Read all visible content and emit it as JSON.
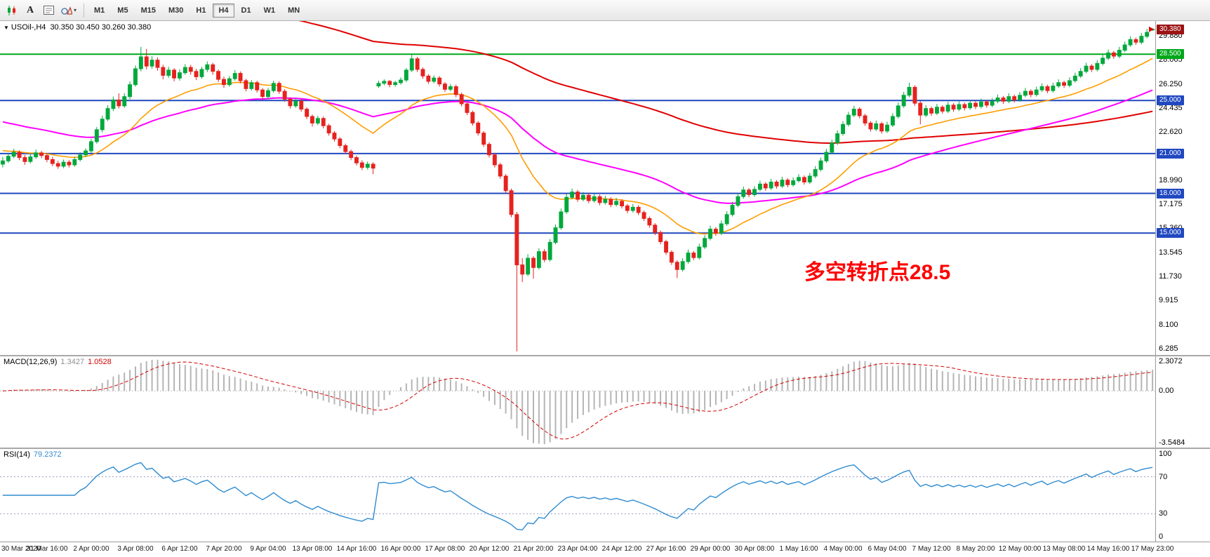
{
  "toolbar": {
    "timeframes": [
      "M1",
      "M5",
      "M15",
      "M30",
      "H1",
      "H4",
      "D1",
      "W1",
      "MN"
    ],
    "active_timeframe": "H4",
    "tools": {
      "text_label": "A",
      "dropdown_icon": "▾"
    }
  },
  "chart": {
    "collapse_icon": "▼",
    "title": "USOil-,H4",
    "ohlc": "30.350 30.450 30.260 30.380",
    "annotation": {
      "text": "多空转折点28.5",
      "color": "#ff0000",
      "at_index": 145,
      "at_price": 12.3
    },
    "price_range": {
      "min": 5.8,
      "max": 31.0
    },
    "price_ticks": [
      "29.880",
      "28.065",
      "26.250",
      "24.435",
      "22.620",
      "20.805",
      "18.990",
      "17.175",
      "15.360",
      "13.545",
      "11.730",
      "9.915",
      "8.100",
      "6.285"
    ],
    "lines": [
      {
        "label": "30.380",
        "price": 30.38,
        "color": "#9c1313",
        "kind": "last-price"
      },
      {
        "label": "28.500",
        "price": 28.5,
        "color": "#00a819",
        "kind": "hline"
      },
      {
        "label": "25.000",
        "price": 25.0,
        "color": "#2048c0",
        "kind": "hline"
      },
      {
        "label": "21.000",
        "price": 21.0,
        "color": "#2048c0",
        "kind": "hline"
      },
      {
        "label": "18.000",
        "price": 18.0,
        "color": "#2048c0",
        "kind": "hline"
      },
      {
        "label": "15.000",
        "price": 15.0,
        "color": "#2048c0",
        "kind": "hline"
      }
    ],
    "label_every": 8,
    "time_labels": [
      "30 Mar 2020",
      "31 Mar 16:00",
      "2 Apr 00:00",
      "3 Apr 08:00",
      "6 Apr 12:00",
      "7 Apr 20:00",
      "9 Apr 04:00",
      "13 Apr 08:00",
      "14 Apr 16:00",
      "16 Apr 00:00",
      "17 Apr 08:00",
      "20 Apr 12:00",
      "21 Apr 20:00",
      "23 Apr 04:00",
      "24 Apr 12:00",
      "27 Apr 16:00",
      "29 Apr 00:00",
      "30 Apr 08:00",
      "1 May 16:00",
      "4 May 00:00",
      "6 May 04:00",
      "7 May 12:00",
      "8 May 20:00",
      "12 May 00:00",
      "13 May 08:00",
      "14 May 16:00",
      "17 May 23:00"
    ]
  },
  "macd": {
    "title": "MACD(12,26,9)",
    "value_main": "1.3427",
    "value_signal": "1.0528",
    "fast": 12,
    "slow": 26,
    "signal": 9,
    "scale_top": "2.3072",
    "scale_zero": "0.00",
    "scale_bottom": "-3.5484"
  },
  "rsi": {
    "title": "RSI(14)",
    "value": "79.2372",
    "period": 14,
    "levels": [
      70,
      30
    ],
    "scale": [
      "100",
      "70",
      "30",
      "0"
    ]
  },
  "chart_data": {
    "type": "candlestick-ohlc",
    "symbol": "USOil-",
    "timeframe": "H4",
    "colors": {
      "up": "#00a83c",
      "down": "#e6221e",
      "macd_hist": "#b5b5b5",
      "macd_signal": "#d40000",
      "rsi_line": "#2e8bd0"
    },
    "overlays": [
      {
        "name": "ma-slow-red",
        "period": 144,
        "seed": 38.0,
        "color": "#e00000",
        "width": 2
      },
      {
        "name": "ma-mid-magenta",
        "period": 55,
        "seed": 23.5,
        "color": "#ff00ff",
        "width": 2
      },
      {
        "name": "ma-fast-orange",
        "period": 21,
        "seed": 21.3,
        "color": "#ff9d00",
        "width": 1.6
      }
    ],
    "candles": [
      [
        20.2,
        20.75,
        19.95,
        20.45
      ],
      [
        20.45,
        21.0,
        20.3,
        20.8
      ],
      [
        20.8,
        21.35,
        20.65,
        21.1
      ],
      [
        21.1,
        21.25,
        20.5,
        20.7
      ],
      [
        20.7,
        20.9,
        20.15,
        20.4
      ],
      [
        20.4,
        20.95,
        20.25,
        20.75
      ],
      [
        20.75,
        21.3,
        20.6,
        21.05
      ],
      [
        21.05,
        21.2,
        20.65,
        20.85
      ],
      [
        20.85,
        21.0,
        20.35,
        20.55
      ],
      [
        20.55,
        20.75,
        20.05,
        20.25
      ],
      [
        20.25,
        20.45,
        19.85,
        20.05
      ],
      [
        20.05,
        20.55,
        19.9,
        20.35
      ],
      [
        20.35,
        20.5,
        19.95,
        20.15
      ],
      [
        20.15,
        20.75,
        20.0,
        20.55
      ],
      [
        20.55,
        21.1,
        20.4,
        20.9
      ],
      [
        20.9,
        21.4,
        20.75,
        21.2
      ],
      [
        21.2,
        22.1,
        21.05,
        21.9
      ],
      [
        21.9,
        23.0,
        21.75,
        22.8
      ],
      [
        22.8,
        23.85,
        22.6,
        23.6
      ],
      [
        23.6,
        24.65,
        23.45,
        24.4
      ],
      [
        24.4,
        25.3,
        24.2,
        25.05
      ],
      [
        25.05,
        25.55,
        24.4,
        24.6
      ],
      [
        24.6,
        25.55,
        24.45,
        25.3
      ],
      [
        25.3,
        26.45,
        25.1,
        26.2
      ],
      [
        26.2,
        27.65,
        26.05,
        27.4
      ],
      [
        27.4,
        29.05,
        27.2,
        28.3
      ],
      [
        28.3,
        28.9,
        27.35,
        27.6
      ],
      [
        27.6,
        28.35,
        27.4,
        28.05
      ],
      [
        28.05,
        28.25,
        27.25,
        27.5
      ],
      [
        27.5,
        27.7,
        26.6,
        26.9
      ],
      [
        26.9,
        27.55,
        26.7,
        27.3
      ],
      [
        27.3,
        27.45,
        26.45,
        26.7
      ],
      [
        26.7,
        27.35,
        26.5,
        27.1
      ],
      [
        27.1,
        27.75,
        26.95,
        27.5
      ],
      [
        27.5,
        27.7,
        26.95,
        27.2
      ],
      [
        27.2,
        27.4,
        26.55,
        26.8
      ],
      [
        26.8,
        27.55,
        26.65,
        27.35
      ],
      [
        27.35,
        27.95,
        27.15,
        27.7
      ],
      [
        27.7,
        27.85,
        26.95,
        27.2
      ],
      [
        27.2,
        27.35,
        26.4,
        26.6
      ],
      [
        26.6,
        26.8,
        25.95,
        26.2
      ],
      [
        26.2,
        26.85,
        26.05,
        26.65
      ],
      [
        26.65,
        27.3,
        26.5,
        27.05
      ],
      [
        27.05,
        27.2,
        26.3,
        26.5
      ],
      [
        26.5,
        26.65,
        25.7,
        25.9
      ],
      [
        25.9,
        26.55,
        25.75,
        26.35
      ],
      [
        26.35,
        26.5,
        25.6,
        25.8
      ],
      [
        25.8,
        25.95,
        25.05,
        25.3
      ],
      [
        25.3,
        25.95,
        25.15,
        25.75
      ],
      [
        25.75,
        26.5,
        25.6,
        26.3
      ],
      [
        26.3,
        26.45,
        25.5,
        25.7
      ],
      [
        25.7,
        25.85,
        24.9,
        25.1
      ],
      [
        25.1,
        25.25,
        24.4,
        24.6
      ],
      [
        24.6,
        25.15,
        24.45,
        24.95
      ],
      [
        24.95,
        25.1,
        24.15,
        24.35
      ],
      [
        24.35,
        24.5,
        23.6,
        23.8
      ],
      [
        23.8,
        23.95,
        23.05,
        23.3
      ],
      [
        23.3,
        23.85,
        23.15,
        23.65
      ],
      [
        23.65,
        23.8,
        22.9,
        23.1
      ],
      [
        23.1,
        23.25,
        22.35,
        22.55
      ],
      [
        22.55,
        22.7,
        21.9,
        22.1
      ],
      [
        22.1,
        22.25,
        21.4,
        21.6
      ],
      [
        21.6,
        21.75,
        20.95,
        21.15
      ],
      [
        21.15,
        21.3,
        20.5,
        20.7
      ],
      [
        20.7,
        20.85,
        20.1,
        20.3
      ],
      [
        20.3,
        20.5,
        19.75,
        19.95
      ],
      [
        19.95,
        20.4,
        19.8,
        20.2
      ],
      [
        20.2,
        20.35,
        19.45,
        19.9
      ],
      [
        26.1,
        26.5,
        25.95,
        26.3
      ],
      [
        26.3,
        26.6,
        26.15,
        26.45
      ],
      [
        26.45,
        26.55,
        26.0,
        26.2
      ],
      [
        26.2,
        26.5,
        26.05,
        26.35
      ],
      [
        26.35,
        26.75,
        26.2,
        26.55
      ],
      [
        26.55,
        27.45,
        26.4,
        27.3
      ],
      [
        27.3,
        28.52,
        27.15,
        28.15
      ],
      [
        28.15,
        28.3,
        27.15,
        27.35
      ],
      [
        27.35,
        27.5,
        26.65,
        26.85
      ],
      [
        26.85,
        27.0,
        26.25,
        26.45
      ],
      [
        26.45,
        26.9,
        26.3,
        26.7
      ],
      [
        26.7,
        26.85,
        26.05,
        26.25
      ],
      [
        26.25,
        26.4,
        25.65,
        25.85
      ],
      [
        25.85,
        26.25,
        25.7,
        26.05
      ],
      [
        26.05,
        26.2,
        25.25,
        25.45
      ],
      [
        25.45,
        25.6,
        24.55,
        24.75
      ],
      [
        24.75,
        24.9,
        23.9,
        24.1
      ],
      [
        24.1,
        24.25,
        23.1,
        23.3
      ],
      [
        23.3,
        23.45,
        22.35,
        22.55
      ],
      [
        22.55,
        22.7,
        21.5,
        21.7
      ],
      [
        21.7,
        21.85,
        20.7,
        20.9
      ],
      [
        20.9,
        21.05,
        19.95,
        20.15
      ],
      [
        20.15,
        20.3,
        19.1,
        19.3
      ],
      [
        19.3,
        19.45,
        18.0,
        18.2
      ],
      [
        18.2,
        18.35,
        16.2,
        16.4
      ],
      [
        16.4,
        16.6,
        6.07,
        12.6
      ],
      [
        12.6,
        13.1,
        11.3,
        11.9
      ],
      [
        11.9,
        13.4,
        11.75,
        13.1
      ],
      [
        13.1,
        13.25,
        11.55,
        12.4
      ],
      [
        12.4,
        13.85,
        12.25,
        13.6
      ],
      [
        13.6,
        13.8,
        12.8,
        13.0
      ],
      [
        13.0,
        14.55,
        12.85,
        14.3
      ],
      [
        14.3,
        15.65,
        14.15,
        15.4
      ],
      [
        15.4,
        16.85,
        15.25,
        16.6
      ],
      [
        16.6,
        17.95,
        16.45,
        17.7
      ],
      [
        17.7,
        18.35,
        17.55,
        18.1
      ],
      [
        18.1,
        18.25,
        17.35,
        17.55
      ],
      [
        17.55,
        18.1,
        17.4,
        17.85
      ],
      [
        17.85,
        18.0,
        17.25,
        17.45
      ],
      [
        17.45,
        18.0,
        17.3,
        17.75
      ],
      [
        17.75,
        17.9,
        17.1,
        17.3
      ],
      [
        17.3,
        17.8,
        17.15,
        17.55
      ],
      [
        17.55,
        17.7,
        16.95,
        17.15
      ],
      [
        17.15,
        17.65,
        17.0,
        17.4
      ],
      [
        17.4,
        17.55,
        16.85,
        17.05
      ],
      [
        17.05,
        17.2,
        16.5,
        16.7
      ],
      [
        16.7,
        17.2,
        16.55,
        16.95
      ],
      [
        16.95,
        17.1,
        16.35,
        16.55
      ],
      [
        16.55,
        16.7,
        15.9,
        16.1
      ],
      [
        16.1,
        16.25,
        15.4,
        15.6
      ],
      [
        15.6,
        15.75,
        14.85,
        15.05
      ],
      [
        15.05,
        15.2,
        14.15,
        14.35
      ],
      [
        14.35,
        14.5,
        13.35,
        13.55
      ],
      [
        13.55,
        13.7,
        12.6,
        12.8
      ],
      [
        12.8,
        12.95,
        11.6,
        12.25
      ],
      [
        12.25,
        13.1,
        12.1,
        12.85
      ],
      [
        12.85,
        13.75,
        12.7,
        13.5
      ],
      [
        13.5,
        13.65,
        12.95,
        13.15
      ],
      [
        13.15,
        14.2,
        13.0,
        13.95
      ],
      [
        13.95,
        14.85,
        13.8,
        14.6
      ],
      [
        14.6,
        15.55,
        14.45,
        15.3
      ],
      [
        15.3,
        15.45,
        14.8,
        15.0
      ],
      [
        15.0,
        15.95,
        14.85,
        15.7
      ],
      [
        15.7,
        16.65,
        15.55,
        16.4
      ],
      [
        16.4,
        17.35,
        16.25,
        17.1
      ],
      [
        17.1,
        18.0,
        16.95,
        17.75
      ],
      [
        17.75,
        18.5,
        17.6,
        18.25
      ],
      [
        18.25,
        18.4,
        17.7,
        17.9
      ],
      [
        17.9,
        18.55,
        17.75,
        18.3
      ],
      [
        18.3,
        18.95,
        18.15,
        18.7
      ],
      [
        18.7,
        18.85,
        18.2,
        18.4
      ],
      [
        18.4,
        19.1,
        18.25,
        18.85
      ],
      [
        18.85,
        19.0,
        18.35,
        18.55
      ],
      [
        18.55,
        19.25,
        18.4,
        19.0
      ],
      [
        19.0,
        19.15,
        18.45,
        18.65
      ],
      [
        18.65,
        19.2,
        18.5,
        18.95
      ],
      [
        18.95,
        19.45,
        18.8,
        19.2
      ],
      [
        19.2,
        19.35,
        18.65,
        18.85
      ],
      [
        18.85,
        19.55,
        18.7,
        19.3
      ],
      [
        19.3,
        20.05,
        19.15,
        19.8
      ],
      [
        19.8,
        20.7,
        19.65,
        20.45
      ],
      [
        20.45,
        21.35,
        20.3,
        21.1
      ],
      [
        21.1,
        22.05,
        20.95,
        21.8
      ],
      [
        21.8,
        22.75,
        21.65,
        22.5
      ],
      [
        22.5,
        23.45,
        22.35,
        23.2
      ],
      [
        23.2,
        24.15,
        23.05,
        23.9
      ],
      [
        23.9,
        24.6,
        23.75,
        24.35
      ],
      [
        24.35,
        24.5,
        23.65,
        23.85
      ],
      [
        23.85,
        24.0,
        23.1,
        23.3
      ],
      [
        23.3,
        23.45,
        22.65,
        22.85
      ],
      [
        22.85,
        23.5,
        22.7,
        23.25
      ],
      [
        23.25,
        23.4,
        22.5,
        22.7
      ],
      [
        22.7,
        23.4,
        22.55,
        23.15
      ],
      [
        23.15,
        24.05,
        23.0,
        23.8
      ],
      [
        23.8,
        24.85,
        23.65,
        24.6
      ],
      [
        24.6,
        25.65,
        24.45,
        25.4
      ],
      [
        25.4,
        26.35,
        25.25,
        26.0
      ],
      [
        26.0,
        26.15,
        24.6,
        24.8
      ],
      [
        24.8,
        24.95,
        23.2,
        23.9
      ],
      [
        23.9,
        24.65,
        23.75,
        24.4
      ],
      [
        24.4,
        24.55,
        23.85,
        24.05
      ],
      [
        24.05,
        24.75,
        23.9,
        24.5
      ],
      [
        24.5,
        24.65,
        24.0,
        24.2
      ],
      [
        24.2,
        24.9,
        24.05,
        24.65
      ],
      [
        24.65,
        24.8,
        24.15,
        24.35
      ],
      [
        24.35,
        24.95,
        24.2,
        24.7
      ],
      [
        24.7,
        24.85,
        24.25,
        24.45
      ],
      [
        24.45,
        25.05,
        24.3,
        24.8
      ],
      [
        24.8,
        24.95,
        24.35,
        24.55
      ],
      [
        24.55,
        25.15,
        24.4,
        24.9
      ],
      [
        24.9,
        25.05,
        24.45,
        24.65
      ],
      [
        24.65,
        25.2,
        24.5,
        24.95
      ],
      [
        24.95,
        25.45,
        24.8,
        25.2
      ],
      [
        25.2,
        25.35,
        24.75,
        24.95
      ],
      [
        24.95,
        25.55,
        24.8,
        25.3
      ],
      [
        25.3,
        25.45,
        24.85,
        25.05
      ],
      [
        25.05,
        25.65,
        24.9,
        25.4
      ],
      [
        25.4,
        25.95,
        25.25,
        25.7
      ],
      [
        25.7,
        25.85,
        25.25,
        25.45
      ],
      [
        25.45,
        26.05,
        25.3,
        25.8
      ],
      [
        25.8,
        26.3,
        25.65,
        26.05
      ],
      [
        26.05,
        26.2,
        25.55,
        25.75
      ],
      [
        25.75,
        26.35,
        25.6,
        26.1
      ],
      [
        26.1,
        26.6,
        25.95,
        26.35
      ],
      [
        26.35,
        26.5,
        25.95,
        26.15
      ],
      [
        26.15,
        26.75,
        26.0,
        26.5
      ],
      [
        26.5,
        27.1,
        26.35,
        26.85
      ],
      [
        26.85,
        27.45,
        26.7,
        27.2
      ],
      [
        27.2,
        27.85,
        27.05,
        27.6
      ],
      [
        27.6,
        27.75,
        27.15,
        27.35
      ],
      [
        27.35,
        28.05,
        27.2,
        27.8
      ],
      [
        27.8,
        28.45,
        27.65,
        28.2
      ],
      [
        28.2,
        28.85,
        28.05,
        28.6
      ],
      [
        28.6,
        28.75,
        28.15,
        28.35
      ],
      [
        28.35,
        29.05,
        28.2,
        28.8
      ],
      [
        28.8,
        29.45,
        28.65,
        29.2
      ],
      [
        29.2,
        29.85,
        29.05,
        29.6
      ],
      [
        29.6,
        29.75,
        29.2,
        29.4
      ],
      [
        29.4,
        30.1,
        29.25,
        29.85
      ],
      [
        29.85,
        30.4,
        29.7,
        30.15
      ],
      [
        30.35,
        30.45,
        30.26,
        30.38
      ]
    ]
  }
}
